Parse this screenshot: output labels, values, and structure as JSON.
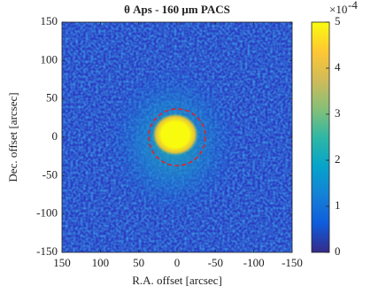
{
  "chart_data": {
    "type": "heatmap",
    "title": "θ Aps - 160 μm PACS",
    "xlabel": "R.A. offset [arcsec]",
    "ylabel": "Dec. offset [arcsec]",
    "xlim": [
      150,
      -150
    ],
    "xticks": [
      150,
      100,
      50,
      0,
      -50,
      -100,
      -150
    ],
    "ylim": [
      -150,
      150
    ],
    "yticks": [
      -150,
      -100,
      -50,
      0,
      50,
      100,
      150
    ],
    "clim": [
      0,
      5
    ],
    "cticks": [
      0,
      1,
      2,
      3,
      4,
      5
    ],
    "colorbar_multiplier": {
      "base": "×10",
      "exponent": "-4"
    },
    "colormap": [
      "#352a87",
      "#0f5cdd",
      "#1481d6",
      "#06a4ca",
      "#2eb7a4",
      "#87bf77",
      "#d1bb59",
      "#fec832",
      "#f9fb0e"
    ]
  }
}
